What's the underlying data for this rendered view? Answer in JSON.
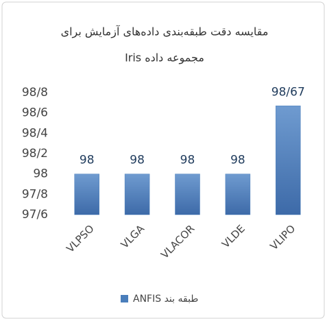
{
  "chart_data": {
    "type": "bar",
    "title": [
      "مقایسه دقت طبقه‌بندی داده‌های آزمایش برای",
      "مجموعه داده  Iris"
    ],
    "categories": [
      "VLPSO",
      "VLGA",
      "VLACOR",
      "VLDE",
      "VLIPO"
    ],
    "series": [
      {
        "name": "طبقه بند ANFIS",
        "color": "#4a7ebb",
        "values": [
          98,
          98,
          98,
          98,
          98.67
        ],
        "value_labels": [
          "98",
          "98",
          "98",
          "98",
          "98/67"
        ]
      }
    ],
    "ylim": [
      97.6,
      98.8
    ],
    "yticks": [
      {
        "value": 97.6,
        "label": "97/6"
      },
      {
        "value": 97.8,
        "label": "97/8"
      },
      98,
      {
        "value": 98.2,
        "label": "98/2"
      },
      {
        "value": 98.4,
        "label": "98/4"
      },
      {
        "value": 98.6,
        "label": "98/6"
      },
      {
        "value": 98.8,
        "label": "98/8"
      }
    ],
    "legend": "bottom"
  }
}
